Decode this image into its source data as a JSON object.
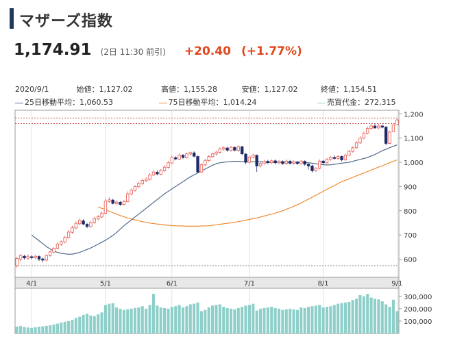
{
  "header": {
    "title": "マザーズ指数",
    "price": "1,174.91",
    "time": "(2日 11:30 前引)",
    "change": "+20.40",
    "change_pct": "(+1.77%)",
    "accent_color": "#e0481e"
  },
  "stats": {
    "date": "2020/9/1",
    "open_label": "始値：",
    "open": "1,127.02",
    "high_label": "高値：",
    "high": "1,155.28",
    "low_label": "安値：",
    "low": "1,127.02",
    "close_label": "終値：",
    "close": "1,154.51",
    "ma25_label": "25日移動平均：",
    "ma25": "1,060.53",
    "ma75_label": "75日移動平均：",
    "ma75": "1,014.24",
    "turnover_label": "売買代金：",
    "turnover": "272,315"
  },
  "chart_data": {
    "type": "candlestick",
    "price_axis": {
      "ticks": [
        "1,200",
        "1,100",
        "1,000",
        "900",
        "800",
        "700",
        "600"
      ],
      "values": [
        1200,
        1100,
        1000,
        900,
        800,
        700,
        600
      ],
      "range": [
        525,
        1215
      ]
    },
    "volume_axis": {
      "ticks": [
        "300,000",
        "200,000",
        "100,000"
      ],
      "values": [
        300000,
        200000,
        100000
      ],
      "range": [
        0,
        365000
      ]
    },
    "x_ticks": [
      {
        "label": "4/1",
        "index": 4
      },
      {
        "label": "5/1",
        "index": 24
      },
      {
        "label": "6/1",
        "index": 42
      },
      {
        "label": "7/1",
        "index": 63
      },
      {
        "label": "8/1",
        "index": 83
      },
      {
        "label": "9/1",
        "index": 103
      }
    ],
    "ref_lines": [
      1183,
      1160,
      573
    ],
    "colors": {
      "up": "#e8534a",
      "down": "#1f2a66",
      "ma25": "#4f6a8a",
      "ma75": "#f08a30",
      "volume": "#8ecfc9"
    },
    "candles": [
      [
        573,
        603,
        565,
        610
      ],
      [
        600,
        615,
        590,
        622
      ],
      [
        612,
        605,
        598,
        618
      ],
      [
        604,
        612,
        596,
        620
      ],
      [
        610,
        606,
        600,
        616
      ],
      [
        606,
        612,
        600,
        618
      ],
      [
        611,
        600,
        592,
        616
      ],
      [
        601,
        596,
        588,
        606
      ],
      [
        596,
        615,
        590,
        620
      ],
      [
        614,
        630,
        610,
        636
      ],
      [
        629,
        645,
        624,
        650
      ],
      [
        644,
        662,
        640,
        668
      ],
      [
        661,
        672,
        655,
        678
      ],
      [
        671,
        690,
        665,
        696
      ],
      [
        689,
        712,
        684,
        720
      ],
      [
        711,
        730,
        705,
        738
      ],
      [
        729,
        748,
        724,
        756
      ],
      [
        746,
        760,
        740,
        768
      ],
      [
        758,
        745,
        740,
        765
      ],
      [
        744,
        735,
        728,
        750
      ],
      [
        734,
        752,
        730,
        758
      ],
      [
        751,
        768,
        746,
        775
      ],
      [
        766,
        775,
        760,
        782
      ],
      [
        774,
        790,
        770,
        798
      ],
      [
        789,
        840,
        786,
        850
      ],
      [
        838,
        845,
        832,
        856
      ],
      [
        844,
        830,
        826,
        850
      ],
      [
        830,
        836,
        824,
        842
      ],
      [
        835,
        826,
        820,
        840
      ],
      [
        826,
        838,
        822,
        844
      ],
      [
        837,
        870,
        834,
        880
      ],
      [
        869,
        885,
        864,
        892
      ],
      [
        884,
        900,
        879,
        906
      ],
      [
        899,
        912,
        894,
        920
      ],
      [
        911,
        925,
        906,
        932
      ],
      [
        924,
        930,
        918,
        938
      ],
      [
        929,
        948,
        924,
        955
      ],
      [
        947,
        960,
        942,
        968
      ],
      [
        959,
        952,
        946,
        966
      ],
      [
        951,
        966,
        946,
        972
      ],
      [
        965,
        980,
        960,
        988
      ],
      [
        979,
        998,
        974,
        1005
      ],
      [
        997,
        1020,
        992,
        1028
      ],
      [
        1019,
        1014,
        1008,
        1025
      ],
      [
        1013,
        1030,
        1008,
        1036
      ],
      [
        1029,
        1020,
        1014,
        1034
      ],
      [
        1019,
        1035,
        1015,
        1040
      ],
      [
        1034,
        1040,
        1028,
        1045
      ],
      [
        1039,
        1025,
        1020,
        1045
      ],
      [
        1024,
        960,
        956,
        1028
      ],
      [
        960,
        990,
        954,
        996
      ],
      [
        989,
        1008,
        984,
        1014
      ],
      [
        1007,
        1024,
        1002,
        1030
      ],
      [
        1023,
        1035,
        1018,
        1040
      ],
      [
        1034,
        1042,
        1028,
        1048
      ],
      [
        1041,
        1055,
        1036,
        1062
      ],
      [
        1054,
        1060,
        1048,
        1066
      ],
      [
        1059,
        1050,
        1044,
        1064
      ],
      [
        1049,
        1062,
        1044,
        1068
      ],
      [
        1061,
        1050,
        1045,
        1066
      ],
      [
        1049,
        1065,
        1044,
        1070
      ],
      [
        1064,
        1035,
        1030,
        1068
      ],
      [
        1034,
        1000,
        992,
        1038
      ],
      [
        1000,
        1022,
        995,
        1028
      ],
      [
        1021,
        1030,
        1016,
        1035
      ],
      [
        1029,
        985,
        960,
        1032
      ],
      [
        985,
        995,
        980,
        1000
      ],
      [
        995,
        1004,
        990,
        1010
      ],
      [
        1004,
        998,
        994,
        1010
      ],
      [
        998,
        1006,
        993,
        1012
      ],
      [
        1006,
        998,
        992,
        1012
      ],
      [
        998,
        1004,
        992,
        1010
      ],
      [
        1003,
        995,
        990,
        1008
      ],
      [
        995,
        1005,
        990,
        1012
      ],
      [
        1004,
        996,
        990,
        1010
      ],
      [
        996,
        1002,
        990,
        1008
      ],
      [
        1001,
        995,
        990,
        1006
      ],
      [
        995,
        1005,
        990,
        1010
      ],
      [
        1004,
        992,
        986,
        1008
      ],
      [
        992,
        985,
        970,
        996
      ],
      [
        985,
        965,
        958,
        990
      ],
      [
        965,
        975,
        960,
        980
      ],
      [
        975,
        1005,
        970,
        1012
      ],
      [
        1005,
        998,
        992,
        1010
      ],
      [
        998,
        1012,
        994,
        1018
      ],
      [
        1012,
        1020,
        1006,
        1026
      ],
      [
        1020,
        1016,
        1010,
        1028
      ],
      [
        1016,
        1024,
        1010,
        1030
      ],
      [
        1024,
        1010,
        1004,
        1028
      ],
      [
        1010,
        1030,
        1005,
        1036
      ],
      [
        1030,
        1045,
        1025,
        1052
      ],
      [
        1045,
        1060,
        1040,
        1066
      ],
      [
        1060,
        1080,
        1055,
        1088
      ],
      [
        1080,
        1100,
        1075,
        1108
      ],
      [
        1100,
        1120,
        1095,
        1128
      ],
      [
        1120,
        1140,
        1115,
        1148
      ],
      [
        1140,
        1150,
        1135,
        1158
      ],
      [
        1150,
        1142,
        1138,
        1158
      ],
      [
        1142,
        1150,
        1136,
        1158
      ],
      [
        1150,
        1145,
        1140,
        1156
      ],
      [
        1145,
        1078,
        1070,
        1150
      ],
      [
        1078,
        1125,
        1075,
        1130
      ],
      [
        1127,
        1155,
        1127,
        1155
      ],
      [
        1155,
        1175,
        1152,
        1182
      ]
    ],
    "ma25": [
      700,
      688,
      676,
      664,
      652,
      642,
      634,
      628,
      624,
      622,
      620,
      621,
      624,
      628,
      634,
      640,
      646,
      654,
      662,
      670,
      678,
      688,
      698,
      710,
      724,
      738,
      750,
      762,
      774,
      786,
      798,
      810,
      822,
      834,
      846,
      858,
      870,
      880,
      890,
      900,
      910,
      920,
      930,
      940,
      948,
      956,
      964,
      972,
      980,
      988,
      994,
      998,
      1000,
      1002,
      1003,
      1004,
      1004,
      1003,
      1002,
      1002,
      1002,
      1002,
      1002,
      1001,
      1000,
      1000,
      1000,
      1000,
      1000,
      1000,
      1000,
      1000,
      1000,
      1000,
      999,
      998,
      996,
      994,
      992,
      990,
      989,
      990,
      992,
      994,
      996,
      998,
      1000,
      1004,
      1008,
      1012,
      1016,
      1020,
      1026,
      1032,
      1040,
      1048,
      1054,
      1060,
      1066,
      1072
    ],
    "ma75": [
      815,
      810,
      804,
      798,
      792,
      786,
      780,
      775,
      770,
      766,
      762,
      758,
      755,
      752,
      749,
      747,
      745,
      743,
      741,
      740,
      739,
      738,
      737,
      737,
      736,
      736,
      736,
      736,
      737,
      737,
      738,
      740,
      742,
      744,
      746,
      748,
      750,
      752,
      755,
      758,
      761,
      764,
      767,
      770,
      774,
      778,
      782,
      786,
      790,
      795,
      800,
      806,
      812,
      818,
      825,
      832,
      840,
      848,
      856,
      864,
      872,
      880,
      888,
      896,
      904,
      912,
      920,
      926,
      932,
      938,
      944,
      950,
      956,
      962,
      968,
      974,
      980,
      986,
      992,
      998,
      1004,
      1010
    ],
    "volume": [
      55000,
      60000,
      52000,
      48000,
      45000,
      50000,
      55000,
      58000,
      62000,
      66000,
      72000,
      80000,
      88000,
      95000,
      100000,
      110000,
      125000,
      135000,
      150000,
      160000,
      145000,
      140000,
      155000,
      170000,
      230000,
      240000,
      245000,
      210000,
      200000,
      190000,
      195000,
      200000,
      205000,
      210000,
      220000,
      200000,
      230000,
      320000,
      225000,
      210000,
      205000,
      200000,
      215000,
      220000,
      230000,
      210000,
      220000,
      235000,
      240000,
      250000,
      180000,
      190000,
      210000,
      225000,
      230000,
      235000,
      215000,
      205000,
      200000,
      195000,
      205000,
      215000,
      225000,
      230000,
      240000,
      185000,
      200000,
      205000,
      210000,
      215000,
      205000,
      200000,
      190000,
      195000,
      200000,
      195000,
      190000,
      210000,
      205000,
      215000,
      220000,
      225000,
      230000,
      210000,
      215000,
      220000,
      230000,
      240000,
      245000,
      250000,
      255000,
      270000,
      280000,
      310000,
      300000,
      320000,
      290000,
      280000,
      275000,
      260000,
      235000,
      215000,
      272315,
      180000
    ]
  }
}
